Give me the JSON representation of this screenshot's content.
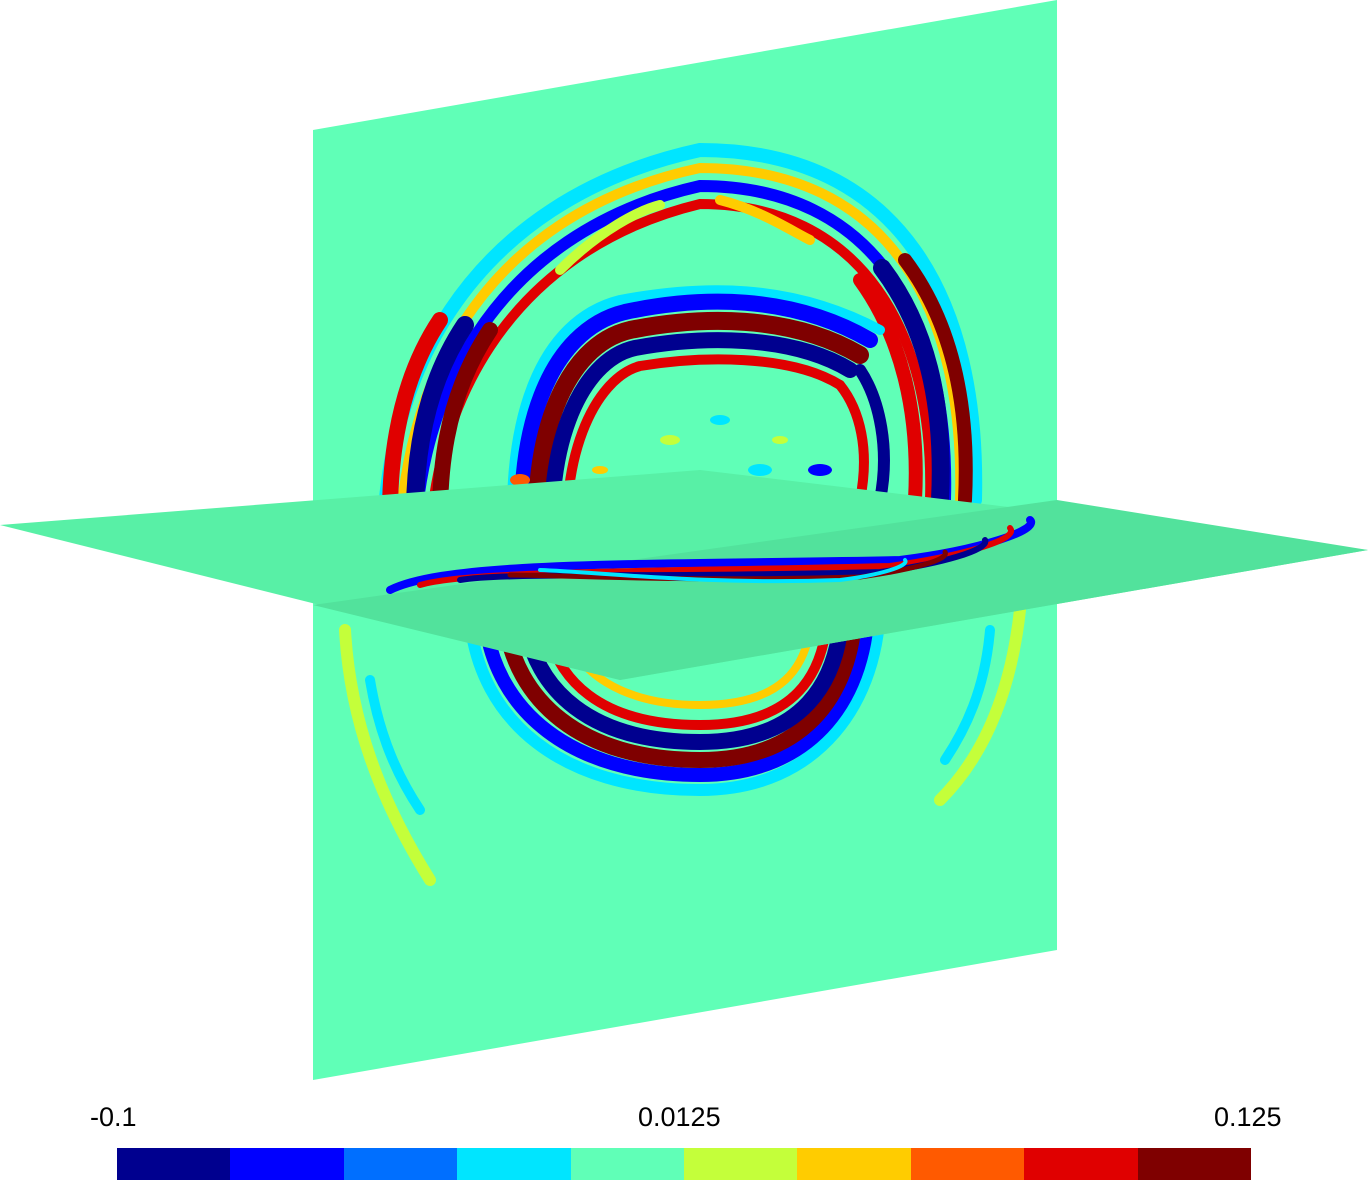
{
  "colorbar": {
    "min_label": "-0.1",
    "mid_label": "0.0125",
    "max_label": "0.125",
    "min": -0.1,
    "max": 0.125,
    "colors": [
      "#00008f",
      "#0000ff",
      "#006fff",
      "#00e5ff",
      "#60ffb7",
      "#c4ff3a",
      "#ffcc00",
      "#ff5a00",
      "#e00000",
      "#7f0000"
    ]
  },
  "scene": {
    "background_color": "#60ffb7",
    "horizontal_plane_color": "#58f0a6",
    "horizontal_plane_shaded_color": "#52e29c"
  }
}
